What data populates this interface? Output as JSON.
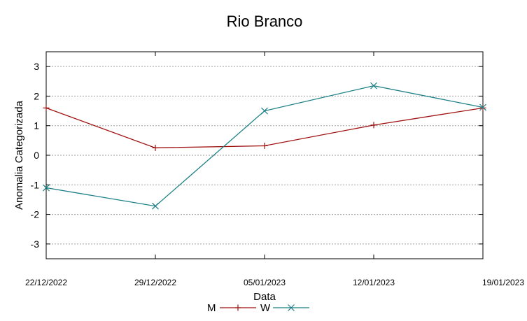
{
  "chart_data": {
    "type": "line",
    "title": "Rio Branco",
    "xlabel": "Data",
    "ylabel": "Anomalia Categorizada",
    "categories": [
      "22/12/2022",
      "29/12/2022",
      "05/01/2023",
      "12/01/2023",
      "19/01/2023"
    ],
    "ylim": [
      -3.5,
      3.5
    ],
    "yticks": [
      -3,
      -2,
      -1,
      0,
      1,
      2,
      3
    ],
    "grid": true,
    "legend_position": "bottom",
    "series": [
      {
        "name": "M",
        "color": "#a01010",
        "marker": "plus",
        "values": [
          1.6,
          0.25,
          0.32,
          1.02,
          1.6
        ]
      },
      {
        "name": "W",
        "color": "#1a7f85",
        "marker": "cross",
        "values": [
          -1.1,
          -1.72,
          1.5,
          2.35,
          1.62
        ]
      }
    ]
  }
}
